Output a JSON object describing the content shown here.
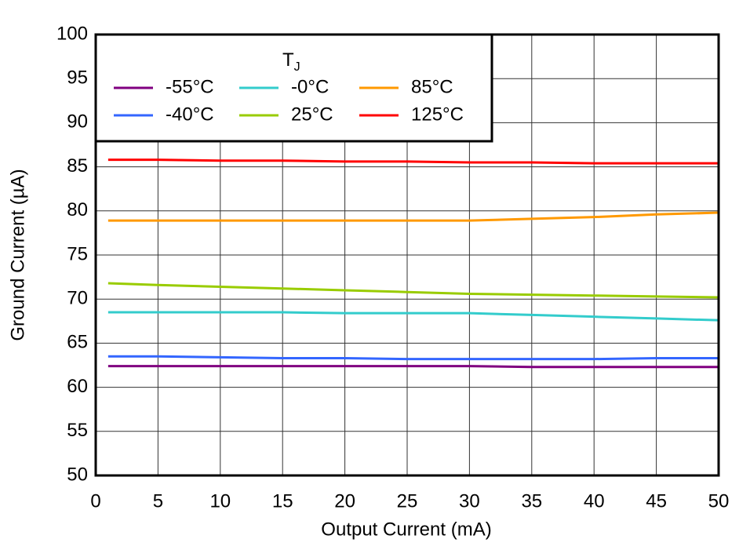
{
  "chart_data": {
    "type": "line",
    "xlabel": "Output Current (mA)",
    "ylabel": "Ground Current (µA)",
    "legend_title": "T",
    "legend_title_subscript": "J",
    "x": [
      1,
      5,
      10,
      15,
      20,
      25,
      30,
      35,
      40,
      45,
      50
    ],
    "series": [
      {
        "name": "-55°C",
        "color": "#800080",
        "values": [
          62.4,
          62.4,
          62.4,
          62.4,
          62.4,
          62.4,
          62.4,
          62.3,
          62.3,
          62.3,
          62.3
        ]
      },
      {
        "name": "-40°C",
        "color": "#3366ff",
        "values": [
          63.5,
          63.5,
          63.4,
          63.3,
          63.3,
          63.2,
          63.2,
          63.2,
          63.2,
          63.3,
          63.3
        ]
      },
      {
        "name": "-0°C",
        "color": "#33cccc",
        "values": [
          68.5,
          68.5,
          68.5,
          68.5,
          68.4,
          68.4,
          68.4,
          68.2,
          68.0,
          67.8,
          67.6
        ]
      },
      {
        "name": "25°C",
        "color": "#99cc00",
        "values": [
          71.8,
          71.6,
          71.4,
          71.2,
          71.0,
          70.8,
          70.6,
          70.5,
          70.4,
          70.3,
          70.2
        ]
      },
      {
        "name": "85°C",
        "color": "#ff9900",
        "values": [
          78.9,
          78.9,
          78.9,
          78.9,
          78.9,
          78.9,
          78.9,
          79.1,
          79.3,
          79.6,
          79.8
        ]
      },
      {
        "name": "125°C",
        "color": "#ff0000",
        "values": [
          85.8,
          85.8,
          85.7,
          85.7,
          85.6,
          85.6,
          85.5,
          85.5,
          85.4,
          85.4,
          85.4
        ]
      }
    ],
    "xlim": [
      0,
      50
    ],
    "xticks": [
      0,
      5,
      10,
      15,
      20,
      25,
      30,
      35,
      40,
      45,
      50
    ],
    "ylim": [
      50,
      100
    ],
    "yticks": [
      50,
      55,
      60,
      65,
      70,
      75,
      80,
      85,
      90,
      95,
      100
    ],
    "grid": true
  }
}
